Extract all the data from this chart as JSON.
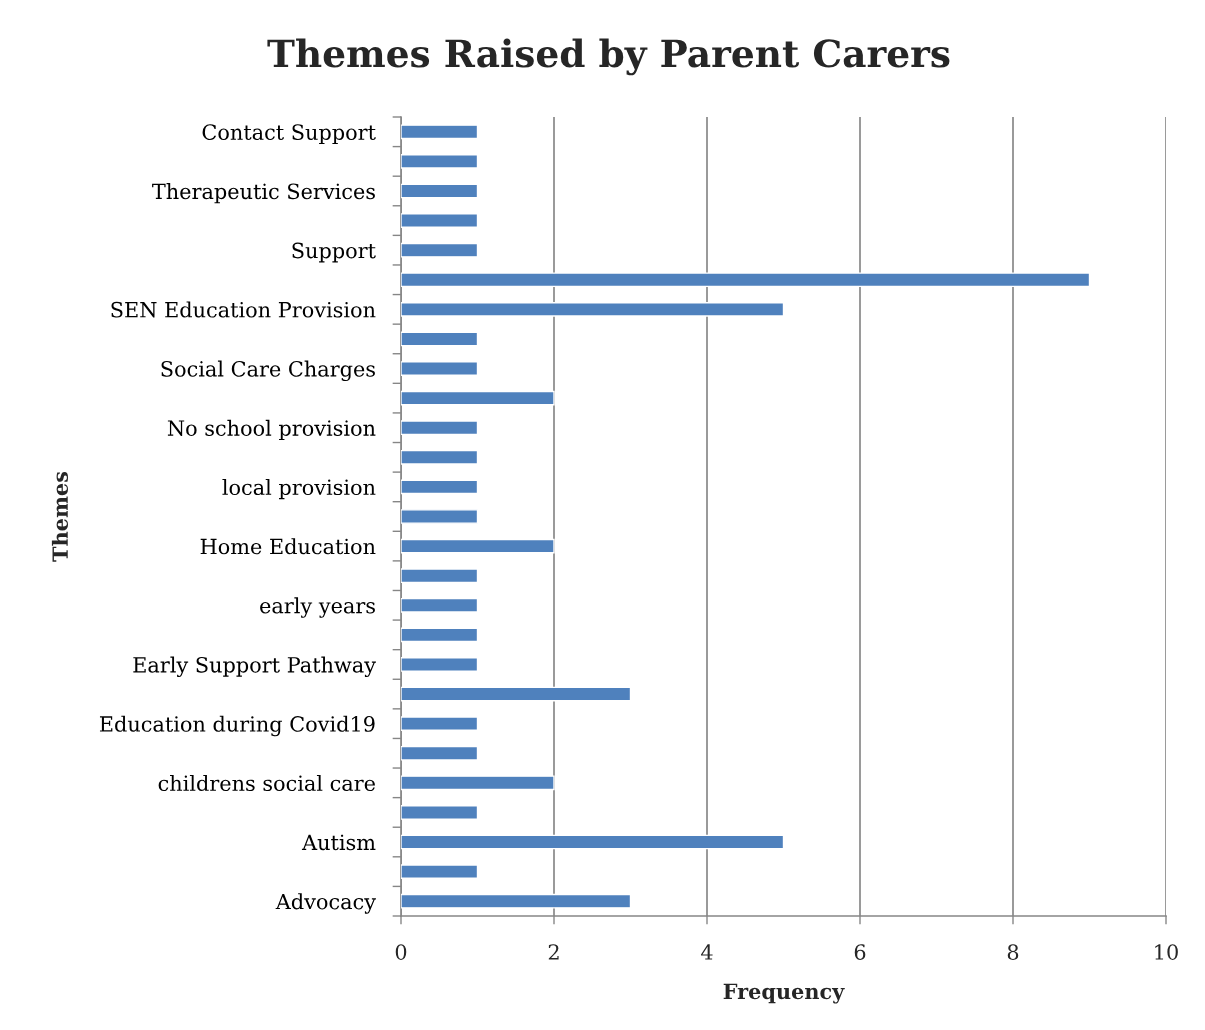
{
  "chart_data": {
    "type": "bar",
    "orientation": "horizontal",
    "title": "Themes Raised by Parent Carers",
    "xlabel": "Frequency",
    "ylabel": "Themes",
    "categories": [
      "Contact Support",
      null,
      "Therapeutic Services",
      null,
      "Support",
      null,
      "SEN Education Provision",
      null,
      "Social Care Charges",
      null,
      "No school provision",
      null,
      "local provision",
      null,
      "Home Education",
      null,
      "early years",
      null,
      "Early Support Pathway",
      null,
      "Education during Covid19",
      null,
      "childrens social care",
      null,
      "Autism",
      null,
      "Advocacy"
    ],
    "values": [
      1,
      1,
      1,
      1,
      1,
      9,
      5,
      1,
      1,
      2,
      1,
      1,
      1,
      1,
      2,
      1,
      1,
      1,
      1,
      3,
      1,
      1,
      2,
      1,
      5,
      1,
      3
    ],
    "color": "#4f81bd",
    "xlim": [
      0,
      10
    ],
    "xticks": [
      0,
      2,
      4,
      6,
      8,
      10
    ],
    "grid": "x"
  }
}
